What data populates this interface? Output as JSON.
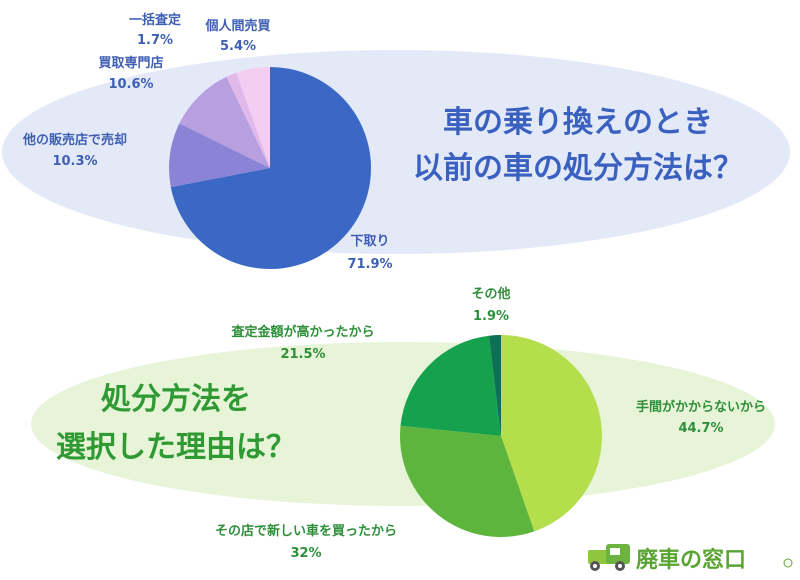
{
  "chart_data": [
    {
      "type": "pie",
      "title": [
        "車の乗り換えのとき",
        "以前の車の処分方法は？"
      ],
      "slices": [
        {
          "label": "下取り",
          "value": 71.9,
          "value_label": "71.9%",
          "color": "#3a68c4"
        },
        {
          "label": "他の販売店で売却",
          "value": 10.3,
          "value_label": "10.3%",
          "color": "#8b84d6"
        },
        {
          "label": "買取専門店",
          "value": 10.6,
          "value_label": "10.6%",
          "color": "#b79fe0"
        },
        {
          "label": "一括査定",
          "value": 1.7,
          "value_label": "1.7%",
          "color": "#e0b8ea"
        },
        {
          "label": "個人間売買",
          "value": 5.4,
          "value_label": "5.4%",
          "color": "#f4cdf3"
        }
      ]
    },
    {
      "type": "pie",
      "title": [
        "処分方法を",
        "選択した理由は？"
      ],
      "slices": [
        {
          "label": "手間がかからないから",
          "value": 44.7,
          "value_label": "44.7%",
          "color": "#b5de4c"
        },
        {
          "label": "その店で新しい車を買ったから",
          "value": 32,
          "value_label": "32%",
          "color": "#5db53e"
        },
        {
          "label": "査定金額が高かったから",
          "value": 21.5,
          "value_label": "21.5%",
          "color": "#16a14f"
        },
        {
          "label": "その他",
          "value": 1.9,
          "value_label": "1.9%",
          "color": "#0e6f54"
        }
      ]
    }
  ],
  "logo": {
    "text": "廃車の窓口"
  }
}
